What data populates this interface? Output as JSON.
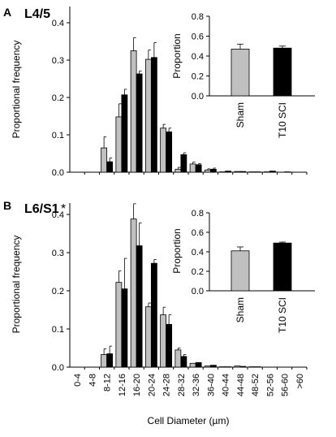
{
  "chart_data": [
    {
      "panel": "A",
      "type": "bar",
      "title": "L4/5",
      "xlabel": "",
      "ylabel": "Proportional frequency",
      "ylim": [
        0,
        0.45
      ],
      "yticks": [
        "0.0",
        "0.1",
        "0.2",
        "0.3",
        "0.4"
      ],
      "categories": [
        "0-4",
        "4-8",
        "8-12",
        "12-16",
        "16-20",
        "20-24",
        "24-28",
        "28-32",
        "32-36",
        "36-40",
        "40-44",
        "44-48",
        "48-52",
        "52-56",
        "56-60",
        ">60"
      ],
      "series": [
        {
          "color": "#c0c0c0",
          "values": [
            0,
            0,
            0.065,
            0.148,
            0.325,
            0.302,
            0.118,
            0.008,
            0.022,
            0.006,
            0.001,
            0.002,
            0.001,
            0.001,
            0,
            0
          ],
          "errors": [
            0,
            0,
            0.03,
            0.035,
            0.035,
            0.025,
            0.01,
            0.005,
            0.005,
            0.003,
            0.001,
            0.001,
            0.001,
            0.001,
            0,
            0
          ]
        },
        {
          "color": "#000000",
          "values": [
            0,
            0,
            0.028,
            0.207,
            0.263,
            0.307,
            0.108,
            0.047,
            0.02,
            0.008,
            0.003,
            0.002,
            0.001,
            0.003,
            0.001,
            0
          ],
          "errors": [
            0,
            0,
            0.01,
            0.015,
            0.008,
            0.04,
            0.01,
            0.005,
            0.003,
            0.003,
            0.001,
            0.001,
            0.001,
            0.001,
            0.001,
            0
          ]
        }
      ],
      "inset": {
        "type": "bar",
        "ylabel": "Proportion",
        "ylim": [
          0,
          0.8
        ],
        "yticks": [
          "0.0",
          "0.2",
          "0.4",
          "0.6",
          "0.8"
        ],
        "categories": [
          "Sham",
          "T10 SCI"
        ],
        "values": [
          0.47,
          0.48
        ],
        "errors": [
          0.05,
          0.02
        ],
        "colors": [
          "#c0c0c0",
          "#000000"
        ]
      }
    },
    {
      "panel": "B",
      "type": "bar",
      "title": "L6/S1",
      "title_marker": "*",
      "xlabel": "Cell Diameter (µm)",
      "ylabel": "Proportional frequency",
      "ylim": [
        0,
        0.5
      ],
      "yticks": [
        "0.0",
        "0.1",
        "0.2",
        "0.3",
        "0.4"
      ],
      "categories": [
        "0-4",
        "4-8",
        "8-12",
        "12-16",
        "16-20",
        "20-24",
        "24-28",
        "28-32",
        "32-36",
        "36-40",
        "40-44",
        "44-48",
        "48-52",
        "52-56",
        "56-60",
        ">60"
      ],
      "series": [
        {
          "color": "#c0c0c0",
          "values": [
            0,
            0,
            0.033,
            0.222,
            0.388,
            0.158,
            0.137,
            0.045,
            0.01,
            0.003,
            0.001,
            0.003,
            0.001,
            0,
            0,
            0
          ],
          "errors": [
            0,
            0,
            0.015,
            0.03,
            0.04,
            0.01,
            0.02,
            0.005,
            0.002,
            0.002,
            0.001,
            0.001,
            0.001,
            0,
            0,
            0
          ]
        },
        {
          "color": "#000000",
          "values": [
            0,
            0,
            0.035,
            0.205,
            0.318,
            0.272,
            0.112,
            0.028,
            0.012,
            0.005,
            0.001,
            0.002,
            0.001,
            0,
            0,
            0
          ],
          "errors": [
            0,
            0,
            0.02,
            0.08,
            0.06,
            0.01,
            0.025,
            0.005,
            0.002,
            0.002,
            0.001,
            0.001,
            0.001,
            0,
            0,
            0
          ]
        }
      ],
      "inset": {
        "type": "bar",
        "ylabel": "Proportion",
        "ylim": [
          0,
          0.8
        ],
        "yticks": [
          "0.0",
          "0.2",
          "0.4",
          "0.6",
          "0.8"
        ],
        "categories": [
          "Sham",
          "T10 SCI"
        ],
        "values": [
          0.41,
          0.49
        ],
        "errors": [
          0.04,
          0.01
        ],
        "colors": [
          "#c0c0c0",
          "#000000"
        ]
      }
    }
  ]
}
